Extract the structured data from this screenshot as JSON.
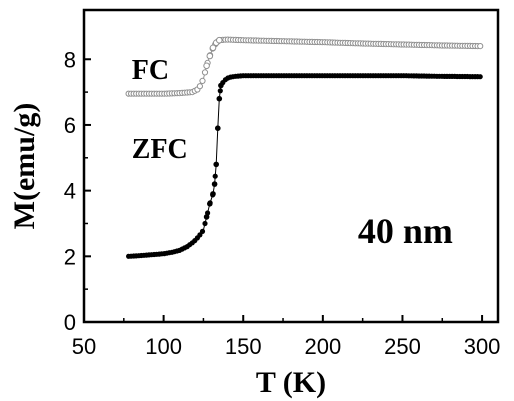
{
  "chart_data": {
    "type": "scatter",
    "xlabel": "T (K)",
    "ylabel": "M(emu/g)",
    "xlim": [
      50,
      310
    ],
    "ylim": [
      0,
      9.5
    ],
    "xticks": [
      50,
      100,
      150,
      200,
      250,
      300
    ],
    "yticks": [
      0,
      2,
      4,
      6,
      8
    ],
    "grid": false,
    "annotations": [
      {
        "text": "FC",
        "x": 80,
        "y": 7.4,
        "size": "medium"
      },
      {
        "text": "ZFC",
        "x": 80,
        "y": 5.0,
        "size": "medium"
      },
      {
        "text": "40 nm",
        "x": 222,
        "y": 2.4,
        "size": "large"
      }
    ],
    "series": [
      {
        "label": "FC",
        "marker": "open-circle",
        "color": "#909090",
        "points": [
          [
            78,
            6.95
          ],
          [
            90,
            6.95
          ],
          [
            100,
            6.95
          ],
          [
            110,
            6.97
          ],
          [
            118,
            7.0
          ],
          [
            122,
            7.1
          ],
          [
            125,
            7.4
          ],
          [
            127,
            7.8
          ],
          [
            129,
            8.1
          ],
          [
            131,
            8.35
          ],
          [
            133,
            8.5
          ],
          [
            135,
            8.58
          ],
          [
            140,
            8.6
          ],
          [
            150,
            8.58
          ],
          [
            175,
            8.55
          ],
          [
            200,
            8.52
          ],
          [
            225,
            8.48
          ],
          [
            250,
            8.45
          ],
          [
            275,
            8.42
          ],
          [
            300,
            8.4
          ]
        ]
      },
      {
        "label": "ZFC",
        "marker": "filled-circle",
        "color": "#000000",
        "points": [
          [
            78,
            2.0
          ],
          [
            85,
            2.02
          ],
          [
            90,
            2.04
          ],
          [
            95,
            2.06
          ],
          [
            100,
            2.08
          ],
          [
            105,
            2.12
          ],
          [
            110,
            2.18
          ],
          [
            115,
            2.3
          ],
          [
            119,
            2.45
          ],
          [
            122,
            2.6
          ],
          [
            125,
            2.8
          ],
          [
            127,
            3.2
          ],
          [
            129,
            3.6
          ],
          [
            131,
            3.9
          ],
          [
            132,
            4.2
          ],
          [
            133,
            4.8
          ],
          [
            134,
            5.9
          ],
          [
            135,
            6.8
          ],
          [
            136,
            7.2
          ],
          [
            138,
            7.35
          ],
          [
            141,
            7.45
          ],
          [
            145,
            7.48
          ],
          [
            150,
            7.5
          ],
          [
            175,
            7.5
          ],
          [
            200,
            7.5
          ],
          [
            225,
            7.5
          ],
          [
            250,
            7.5
          ],
          [
            275,
            7.48
          ],
          [
            300,
            7.47
          ]
        ]
      }
    ]
  }
}
